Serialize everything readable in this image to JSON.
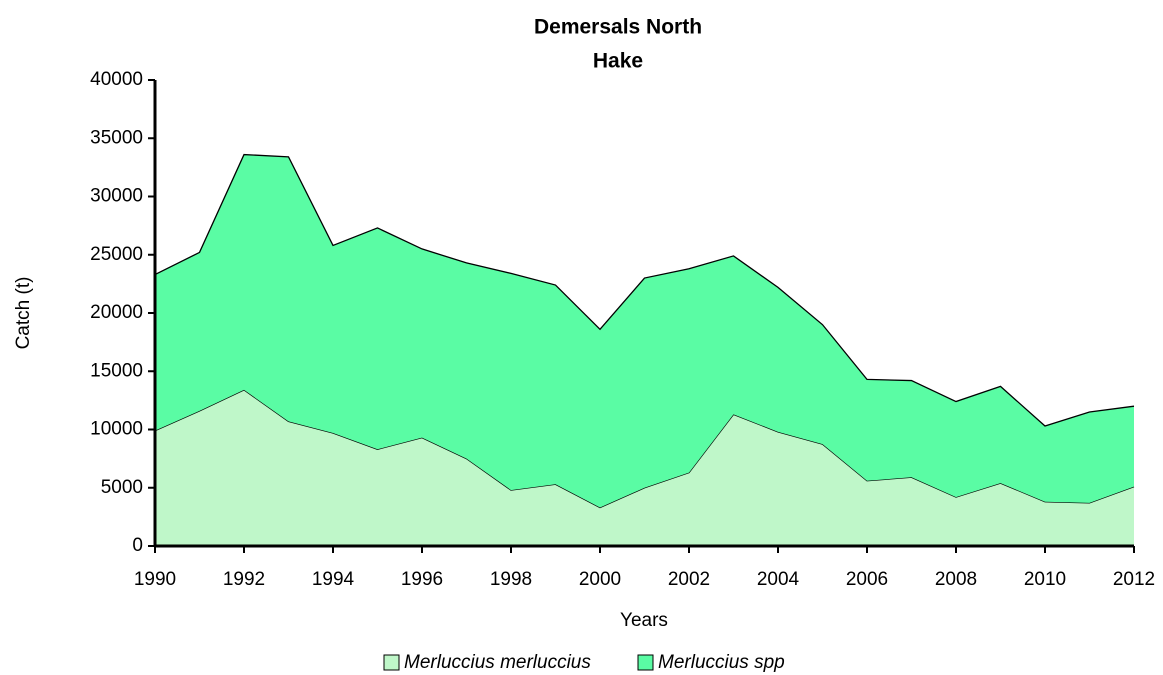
{
  "chart_data": {
    "type": "stacked_area",
    "title": "Demersals North",
    "subtitle": "Hake",
    "y_label": "Catch (t)",
    "x_label": "Years",
    "x": [
      1990,
      1991,
      1992,
      1993,
      1994,
      1995,
      1996,
      1997,
      1998,
      1999,
      2000,
      2001,
      2002,
      2003,
      2004,
      2005,
      2006,
      2007,
      2008,
      2009,
      2010,
      2011,
      2012
    ],
    "series": [
      {
        "name": "Merluccius merluccius",
        "color": "#bff7c9",
        "values": [
          9900,
          11600,
          13400,
          10700,
          9700,
          8300,
          9300,
          7500,
          4800,
          5300,
          3300,
          5000,
          6300,
          11300,
          9800,
          8750,
          5600,
          5900,
          4200,
          5400,
          3800,
          3700,
          5100
        ]
      },
      {
        "name": "Merluccius spp",
        "color": "#5afca4",
        "values": [
          13400,
          13600,
          20200,
          22700,
          16100,
          19000,
          16200,
          16800,
          18600,
          17100,
          15300,
          18000,
          17500,
          13600,
          12400,
          10250,
          8700,
          8300,
          8200,
          8300,
          6500,
          7800,
          6900
        ]
      }
    ],
    "xlim": [
      1990,
      2012
    ],
    "xticks": [
      1990,
      1992,
      1994,
      1996,
      1998,
      2000,
      2002,
      2004,
      2006,
      2008,
      2010,
      2012
    ],
    "ylim": [
      0,
      40000
    ],
    "yticks": [
      0,
      5000,
      10000,
      15000,
      20000,
      25000,
      30000,
      35000,
      40000
    ],
    "grid": false,
    "legend": "bottom"
  }
}
